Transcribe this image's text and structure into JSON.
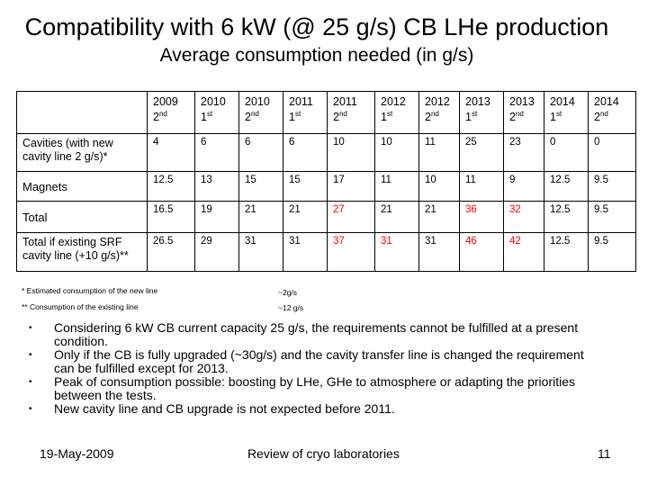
{
  "title": "Compatibility with 6 kW (@ 25 g/s) CB LHe production",
  "subtitle": "Average consumption needed (in g/s)",
  "table": {
    "columns": [
      {
        "year": "2009",
        "sup": "nd",
        "num": "2"
      },
      {
        "year": "2010",
        "sup": "st",
        "num": "1"
      },
      {
        "year": "2010",
        "sup": "nd",
        "num": "2"
      },
      {
        "year": "2011",
        "sup": "st",
        "num": "1"
      },
      {
        "year": "2011",
        "sup": "nd",
        "num": "2"
      },
      {
        "year": "2012",
        "sup": "st",
        "num": "1"
      },
      {
        "year": "2012",
        "sup": "nd",
        "num": "2"
      },
      {
        "year": "2013",
        "sup": "st",
        "num": "1"
      },
      {
        "year": "2013",
        "sup": "nd",
        "num": "2"
      },
      {
        "year": "2014",
        "sup": "st",
        "num": "1"
      },
      {
        "year": "2014",
        "sup": "nd",
        "num": "2"
      }
    ],
    "rows": [
      {
        "label": "Cavities (with new cavity line 2 g/s)*",
        "cells": [
          "4",
          "6",
          "6",
          "6",
          "10",
          "10",
          "11",
          "25",
          "23",
          "0",
          "0"
        ]
      },
      {
        "label": "Magnets",
        "cells": [
          "12.5",
          "13",
          "15",
          "15",
          "17",
          "11",
          "10",
          "11",
          "9",
          "12.5",
          "9.5"
        ]
      },
      {
        "label": "Total",
        "cells": [
          "16.5",
          "19",
          "21",
          "21",
          "27",
          "21",
          "21",
          "36",
          "32",
          "12.5",
          "9.5"
        ]
      },
      {
        "label": "Total if existing SRF cavity line (+10 g/s)**",
        "cells": [
          "26.5",
          "29",
          "31",
          "31",
          "37",
          "31",
          "31",
          "46",
          "42",
          "12.5",
          "9.5"
        ]
      }
    ],
    "colors": {
      "red": "#ff0000",
      "black": "#000000"
    }
  },
  "notes": {
    "note1_label": "* Estimated consumption of the new line",
    "note1_value": "~2g/s",
    "note2_label": "** Consumption of the existing line",
    "note2_value": "~12 g/s"
  },
  "bullets": [
    "Considering 6 kW CB current capacity 25 g/s, the requirements cannot be fulfilled at a present condition.",
    "Only if the CB is fully upgraded (~30g/s) and the cavity transfer line is changed the requirement can be fulfilled except for 2013.",
    "Peak of consumption possible: boosting by LHe, GHe to atmosphere or adapting the priorities between the tests.",
    "New cavity line and CB upgrade is not expected before 2011."
  ],
  "footer": {
    "date": "19-May-2009",
    "center": "Review of cryo laboratories",
    "page": "11"
  }
}
